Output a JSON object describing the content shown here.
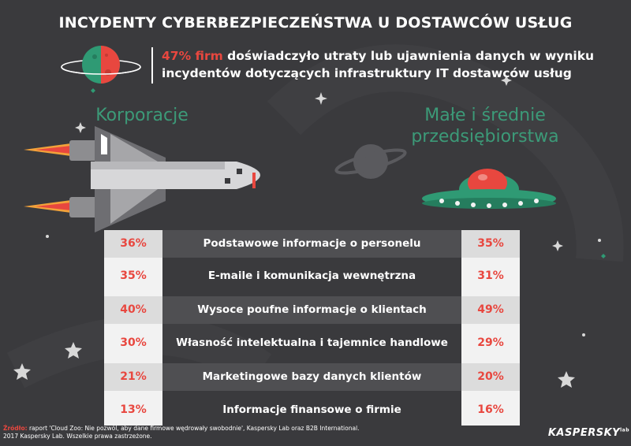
{
  "title": "INCYDENTY CYBERBEZPIECZEŃSTWA U DOSTAWCÓW USŁUG",
  "headline": {
    "highlight": "47% firm",
    "text": " doświadczyło utraty lub ujawnienia danych w wyniku incydentów dotyczących infrastruktury IT dostawców usług"
  },
  "sections": {
    "left": "Korporacje",
    "right_line1": "Małe i średnie",
    "right_line2": "przedsiębiorstwa"
  },
  "rows": [
    {
      "label": "Podstawowe informacje o personelu",
      "left": "36%",
      "right": "35%"
    },
    {
      "label": "E-maile i komunikacja wewnętrzna",
      "left": "35%",
      "right": "31%"
    },
    {
      "label": "Wysoce poufne informacje o klientach",
      "left": "40%",
      "right": "49%"
    },
    {
      "label": "Własność intelektualna i tajemnice handlowe",
      "left": "30%",
      "right": "29%"
    },
    {
      "label": "Marketingowe bazy danych klientów",
      "left": "21%",
      "right": "20%"
    },
    {
      "label": "Informacje finansowe o firmie",
      "left": "13%",
      "right": "16%"
    }
  ],
  "source": {
    "label": "Źródło:",
    "line1": " raport 'Cloud Zoo: Nie pozwól, aby dane firmowe wędrowały swobodnie', Kaspersky Lab oraz B2B International.",
    "line2": "2017 Kaspersky Lab. Wszelkie prawa zastrzeżone."
  },
  "brand": {
    "name": "KASPERSKY",
    "suffix": "lab"
  },
  "colors": {
    "accent_red": "#e8473f",
    "accent_green": "#3c9a78",
    "background": "#3a3a3d"
  },
  "icons": [
    "planet-icon",
    "space-shuttle-icon",
    "ufo-icon",
    "saturn-icon",
    "star-icon"
  ]
}
